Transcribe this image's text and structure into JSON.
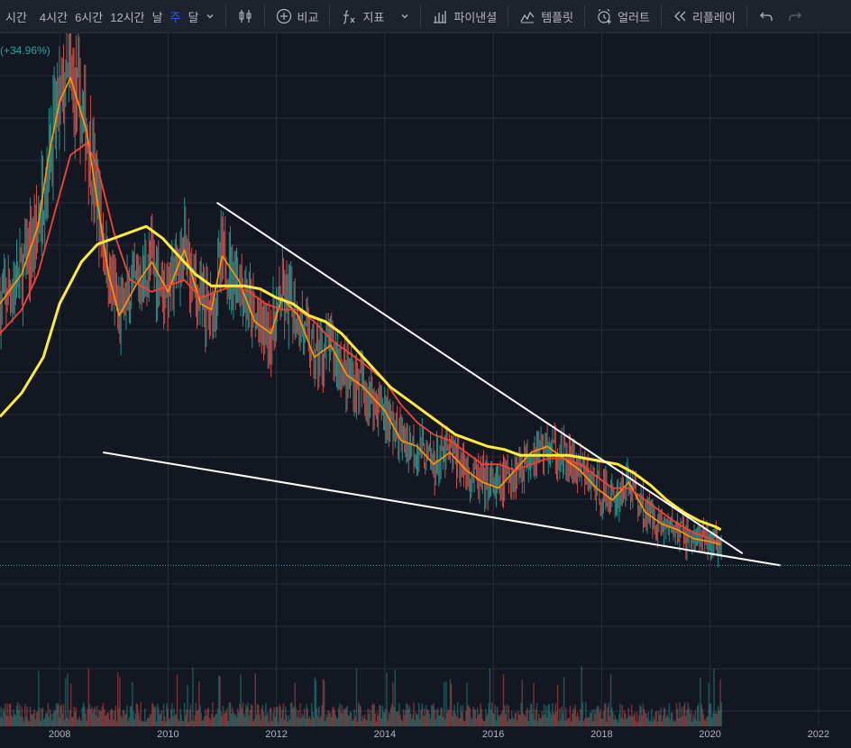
{
  "toolbar": {
    "intervals": [
      "시간",
      "4시간",
      "6시간",
      "12시간",
      "날",
      "주",
      "달"
    ],
    "active_interval": "주",
    "compare_label": "비교",
    "indicators_label": "지표",
    "pine_label": "파이낸셜",
    "templates_label": "템플릿",
    "alert_label": "얼러트",
    "replay_label": "리플레이",
    "icons": [
      "chevron-down-icon",
      "candles-icon",
      "plus-circle-icon",
      "fx-icon",
      "chevron-down-icon",
      "bar-chart-icon",
      "templates-icon",
      "alarm-icon",
      "rewind-icon",
      "undo-icon",
      "redo-icon"
    ]
  },
  "legend": {
    "change_text": "(+34.96%)"
  },
  "chart_data": {
    "type": "line",
    "x_axis": {
      "ticks": [
        "2008",
        "2010",
        "2012",
        "2014",
        "2016",
        "2018",
        "2020",
        "2022"
      ],
      "range": [
        2006.9,
        2022.6
      ]
    },
    "y_range": [
      0,
      100
    ],
    "grid": true,
    "colors": {
      "background": "#131722",
      "grid": "#2a2e39",
      "up": "#26a69a",
      "down": "#ef5350",
      "ma_fast": "#ff9800",
      "ma_mid": "#f44336",
      "ma_slow": "#ffeb3b",
      "trendline": "#ffffff",
      "price_line": "#26a69a"
    },
    "current_price_level": 11,
    "series": [
      {
        "values_x": [
          2006.9,
          2007.3,
          2007.6,
          2007.8,
          2008.0,
          2008.2,
          2008.5,
          2008.7,
          2008.9,
          2009.1,
          2009.4,
          2009.7,
          2010.0,
          2010.3,
          2010.6,
          2010.8,
          2011.0,
          2011.3,
          2011.6,
          2011.9,
          2012.1,
          2012.4,
          2012.7,
          2013.0,
          2013.3,
          2013.6,
          2014.0,
          2014.3,
          2014.6,
          2014.9,
          2015.2,
          2015.5,
          2015.8,
          2016.1,
          2016.4,
          2016.7,
          2017.0,
          2017.3,
          2017.6,
          2017.9,
          2018.2,
          2018.5,
          2018.8,
          2019.1,
          2019.4,
          2019.7,
          2020.0,
          2020.2
        ],
        "values_y": [
          55,
          60,
          68,
          80,
          89,
          93,
          84,
          72,
          60,
          53,
          58,
          62,
          57,
          64,
          55,
          54,
          63,
          59,
          52,
          50,
          56,
          53,
          46,
          48,
          43,
          41,
          37,
          32,
          31,
          28,
          30,
          27,
          25,
          24,
          27,
          30,
          31,
          29,
          27,
          24,
          22,
          25,
          20,
          18,
          17,
          15.5,
          15,
          14.5
        ]
      },
      {
        "values_x": [
          2006.9,
          2007.3,
          2007.6,
          2007.9,
          2008.2,
          2008.5,
          2008.7,
          2009.0,
          2009.3,
          2009.7,
          2010.0,
          2010.3,
          2010.6,
          2010.9,
          2011.2,
          2011.5,
          2011.8,
          2012.1,
          2012.4,
          2012.7,
          2013.0,
          2013.3,
          2013.6,
          2014.0,
          2014.3,
          2014.6,
          2014.9,
          2015.2,
          2015.5,
          2015.8,
          2016.1,
          2016.4,
          2016.7,
          2017.0,
          2017.3,
          2017.6,
          2017.9,
          2018.2,
          2018.5,
          2018.8,
          2019.1,
          2019.4,
          2019.7,
          2020.0,
          2020.2
        ],
        "values_y": [
          50,
          54,
          60,
          70,
          80,
          82,
          78,
          67,
          59,
          57,
          58,
          59,
          56,
          57,
          58,
          57,
          55,
          54,
          54,
          52,
          49,
          47,
          45,
          42,
          38,
          35,
          33,
          32,
          30,
          28,
          28,
          27,
          28,
          29,
          29,
          28,
          26,
          24,
          24,
          22,
          20,
          18,
          16.5,
          15.5,
          14.7
        ]
      },
      {
        "values_x": [
          2006.9,
          2007.3,
          2007.7,
          2008.0,
          2008.4,
          2008.7,
          2009.0,
          2009.3,
          2009.6,
          2009.9,
          2010.2,
          2010.5,
          2010.8,
          2011.1,
          2011.4,
          2011.7,
          2012.0,
          2012.3,
          2012.6,
          2012.9,
          2013.2,
          2013.5,
          2013.8,
          2014.1,
          2014.4,
          2014.7,
          2015.0,
          2015.3,
          2015.6,
          2015.9,
          2016.2,
          2016.5,
          2016.8,
          2017.1,
          2017.4,
          2017.7,
          2018.0,
          2018.3,
          2018.6,
          2018.9,
          2019.2,
          2019.5,
          2019.8,
          2020.1,
          2020.2
        ],
        "values_y": [
          36,
          40,
          46,
          55,
          62,
          65,
          66,
          67,
          68,
          66,
          63,
          60,
          58,
          58,
          58,
          57.5,
          56,
          55,
          53,
          52,
          50,
          47,
          44,
          41,
          39,
          37,
          35,
          33,
          32,
          31,
          30.5,
          29.5,
          29.5,
          29.5,
          29.5,
          29,
          28.5,
          28,
          26.5,
          24.5,
          22,
          20,
          18.5,
          17.5,
          17
        ]
      }
    ],
    "trendlines": [
      {
        "from": [
          2010.9,
          72
        ],
        "to": [
          2020.6,
          13
        ]
      },
      {
        "from": [
          2008.8,
          30
        ],
        "to": [
          2021.3,
          11
        ]
      }
    ]
  }
}
